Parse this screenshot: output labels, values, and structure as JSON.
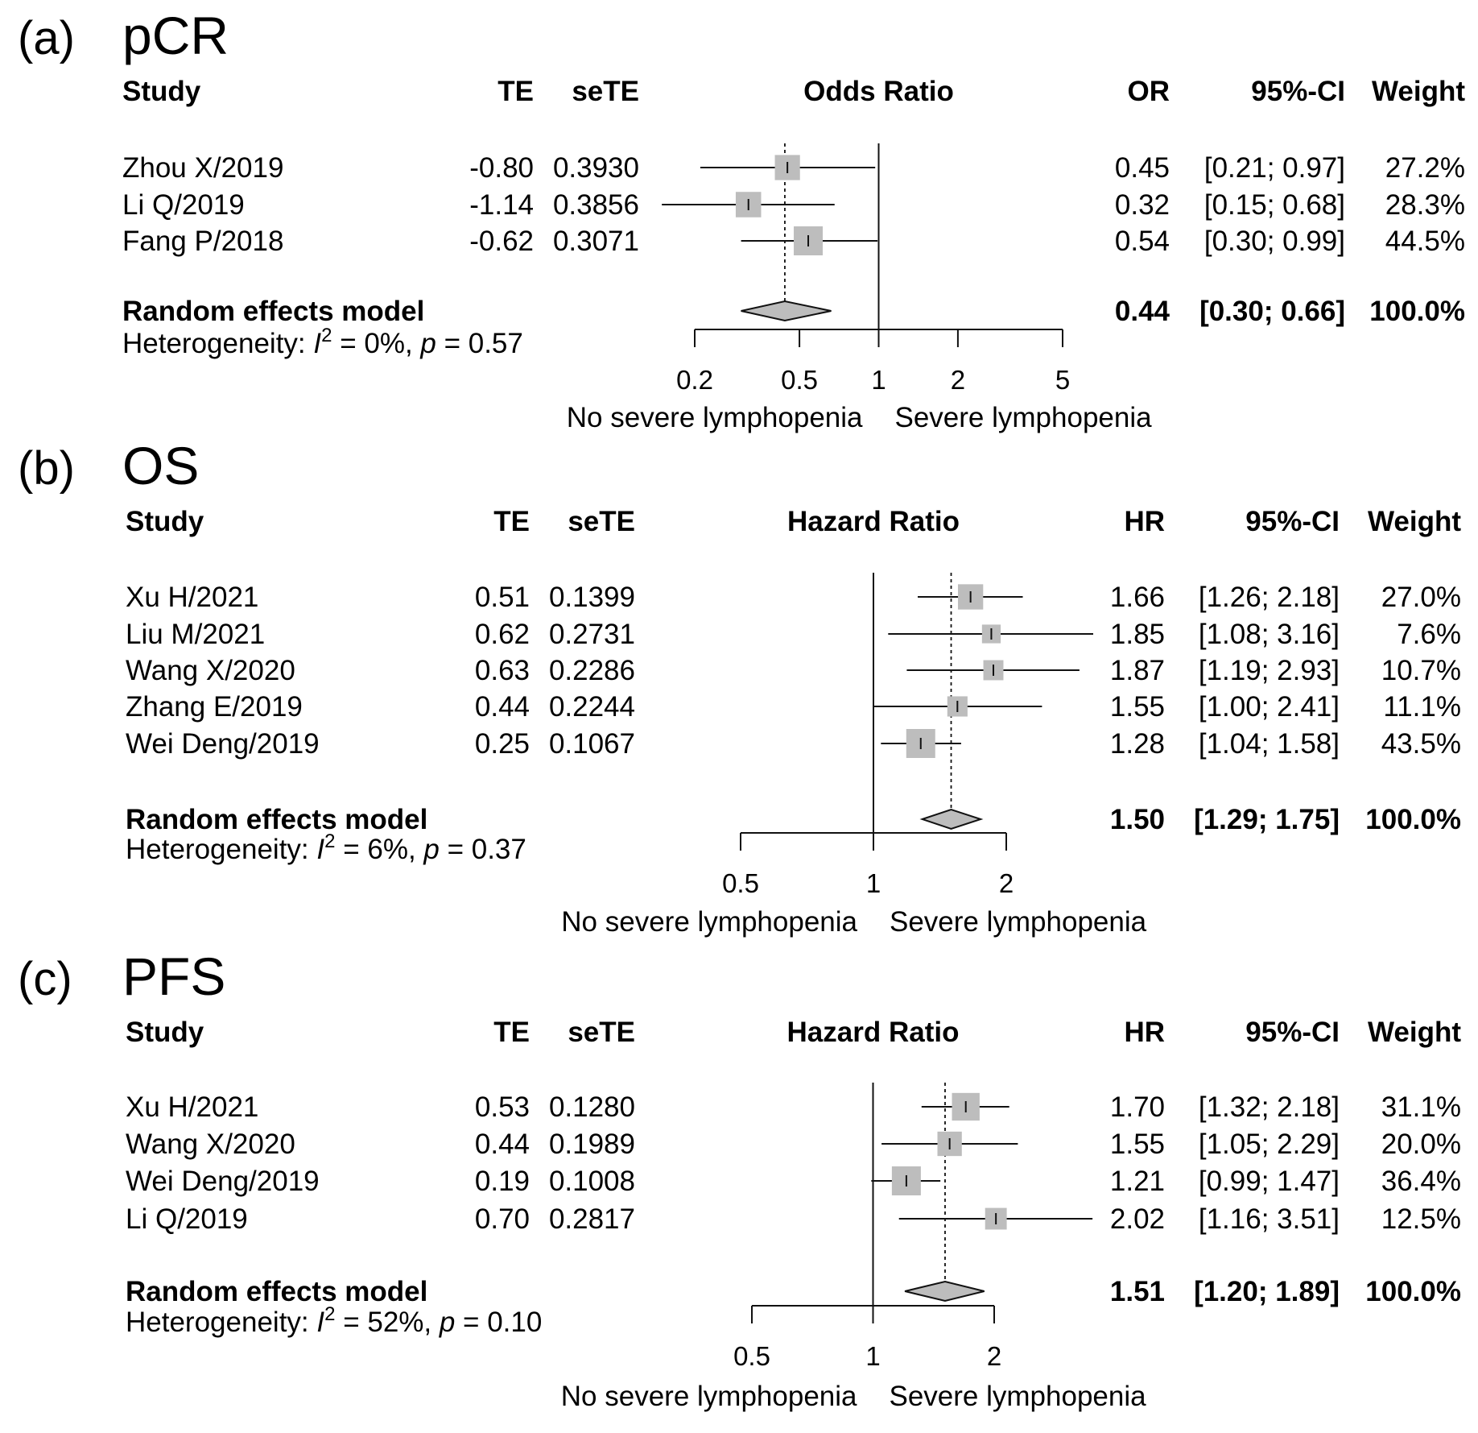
{
  "chart_data": [
    {
      "type": "forest",
      "letter": "(a)",
      "title": "pCR",
      "measure": "Odds Ratio",
      "headers": {
        "study": "Study",
        "te": "TE",
        "sete": "seTE",
        "plot": "Odds Ratio",
        "est": "OR",
        "ci": "95%-CI",
        "weight": "Weight"
      },
      "studies": [
        {
          "name": "Zhou X/2019",
          "te": "-0.80",
          "sete": "0.3930",
          "est_text": "0.45",
          "ci_text": "[0.21; 0.97]",
          "weight_text": "27.2%",
          "est": 0.45,
          "lower": 0.21,
          "upper": 0.97,
          "weight": 27.2
        },
        {
          "name": "Li Q/2019",
          "te": "-1.14",
          "sete": "0.3856",
          "est_text": "0.32",
          "ci_text": "[0.15; 0.68]",
          "weight_text": "28.3%",
          "est": 0.32,
          "lower": 0.15,
          "upper": 0.68,
          "weight": 28.3
        },
        {
          "name": "Fang P/2018",
          "te": "-0.62",
          "sete": "0.3071",
          "est_text": "0.54",
          "ci_text": "[0.30; 0.99]",
          "weight_text": "44.5%",
          "est": 0.54,
          "lower": 0.3,
          "upper": 0.99,
          "weight": 44.5
        }
      ],
      "pooled": {
        "label": "Random effects model",
        "est_text": "0.44",
        "ci_text": "[0.30; 0.66]",
        "weight_text": "100.0%",
        "est": 0.44,
        "lower": 0.3,
        "upper": 0.66
      },
      "heterogeneity": {
        "prefix": "Heterogeneity: ",
        "i_symbol": "I",
        "sup": "2",
        "i2_text": " = 0%, ",
        "p_symbol": "p",
        "p_text": " = 0.57"
      },
      "axis": {
        "ticks": [
          0.2,
          0.5,
          1,
          2,
          5
        ],
        "tick_labels": [
          "0.2",
          "0.5",
          "1",
          "2",
          "5"
        ],
        "xlim": [
          0.2,
          5
        ],
        "null_value": 1
      },
      "direction_labels": {
        "left": "No severe lymphopenia",
        "right": "Severe lymphopenia"
      }
    },
    {
      "type": "forest",
      "letter": "(b)",
      "title": "OS",
      "measure": "Hazard Ratio",
      "headers": {
        "study": "Study",
        "te": "TE",
        "sete": "seTE",
        "plot": "Hazard Ratio",
        "est": "HR",
        "ci": "95%-CI",
        "weight": "Weight"
      },
      "studies": [
        {
          "name": "Xu H/2021",
          "te": "0.51",
          "sete": "0.1399",
          "est_text": "1.66",
          "ci_text": "[1.26; 2.18]",
          "weight_text": "27.0%",
          "est": 1.66,
          "lower": 1.26,
          "upper": 2.18,
          "weight": 27.0
        },
        {
          "name": "Liu M/2021",
          "te": "0.62",
          "sete": "0.2731",
          "est_text": "1.85",
          "ci_text": "[1.08; 3.16]",
          "weight_text": "7.6%",
          "est": 1.85,
          "lower": 1.08,
          "upper": 3.16,
          "weight": 7.6
        },
        {
          "name": "Wang X/2020",
          "te": "0.63",
          "sete": "0.2286",
          "est_text": "1.87",
          "ci_text": "[1.19; 2.93]",
          "weight_text": "10.7%",
          "est": 1.87,
          "lower": 1.19,
          "upper": 2.93,
          "weight": 10.7
        },
        {
          "name": "Zhang E/2019",
          "te": "0.44",
          "sete": "0.2244",
          "est_text": "1.55",
          "ci_text": "[1.00; 2.41]",
          "weight_text": "11.1%",
          "est": 1.55,
          "lower": 1.0,
          "upper": 2.41,
          "weight": 11.1
        },
        {
          "name": "Wei Deng/2019",
          "te": "0.25",
          "sete": "0.1067",
          "est_text": "1.28",
          "ci_text": "[1.04; 1.58]",
          "weight_text": "43.5%",
          "est": 1.28,
          "lower": 1.04,
          "upper": 1.58,
          "weight": 43.5
        }
      ],
      "pooled": {
        "label": "Random effects model",
        "est_text": "1.50",
        "ci_text": "[1.29; 1.75]",
        "weight_text": "100.0%",
        "est": 1.5,
        "lower": 1.29,
        "upper": 1.75
      },
      "heterogeneity": {
        "prefix": "Heterogeneity: ",
        "i_symbol": "I",
        "sup": "2",
        "i2_text": " = 6%, ",
        "p_symbol": "p",
        "p_text": " = 0.37"
      },
      "axis": {
        "ticks": [
          0.5,
          1,
          2
        ],
        "tick_labels": [
          "0.5",
          "1",
          "2"
        ],
        "xlim": [
          0.5,
          2
        ],
        "null_value": 1
      },
      "direction_labels": {
        "left": "No severe lymphopenia",
        "right": "Severe lymphopenia"
      }
    },
    {
      "type": "forest",
      "letter": "(c)",
      "title": "PFS",
      "measure": "Hazard Ratio",
      "headers": {
        "study": "Study",
        "te": "TE",
        "sete": "seTE",
        "plot": "Hazard Ratio",
        "est": "HR",
        "ci": "95%-CI",
        "weight": "Weight"
      },
      "studies": [
        {
          "name": "Xu H/2021",
          "te": "0.53",
          "sete": "0.1280",
          "est_text": "1.70",
          "ci_text": "[1.32; 2.18]",
          "weight_text": "31.1%",
          "est": 1.7,
          "lower": 1.32,
          "upper": 2.18,
          "weight": 31.1
        },
        {
          "name": "Wang X/2020",
          "te": "0.44",
          "sete": "0.1989",
          "est_text": "1.55",
          "ci_text": "[1.05; 2.29]",
          "weight_text": "20.0%",
          "est": 1.55,
          "lower": 1.05,
          "upper": 2.29,
          "weight": 20.0
        },
        {
          "name": "Wei Deng/2019",
          "te": "0.19",
          "sete": "0.1008",
          "est_text": "1.21",
          "ci_text": "[0.99; 1.47]",
          "weight_text": "36.4%",
          "est": 1.21,
          "lower": 0.99,
          "upper": 1.47,
          "weight": 36.4
        },
        {
          "name": "Li Q/2019",
          "te": "0.70",
          "sete": "0.2817",
          "est_text": "2.02",
          "ci_text": "[1.16; 3.51]",
          "weight_text": "12.5%",
          "est": 2.02,
          "lower": 1.16,
          "upper": 3.51,
          "weight": 12.5
        }
      ],
      "pooled": {
        "label": "Random effects model",
        "est_text": "1.51",
        "ci_text": "[1.20; 1.89]",
        "weight_text": "100.0%",
        "est": 1.51,
        "lower": 1.2,
        "upper": 1.89
      },
      "heterogeneity": {
        "prefix": "Heterogeneity: ",
        "i_symbol": "I",
        "sup": "2",
        "i2_text": " = 52%, ",
        "p_symbol": "p",
        "p_text": " = 0.10"
      },
      "axis": {
        "ticks": [
          0.5,
          1,
          2
        ],
        "tick_labels": [
          "0.5",
          "1",
          "2"
        ],
        "xlim": [
          0.5,
          2
        ],
        "null_value": 1
      },
      "direction_labels": {
        "left": "No severe lymphopenia",
        "right": "Severe lymphopenia"
      }
    }
  ]
}
